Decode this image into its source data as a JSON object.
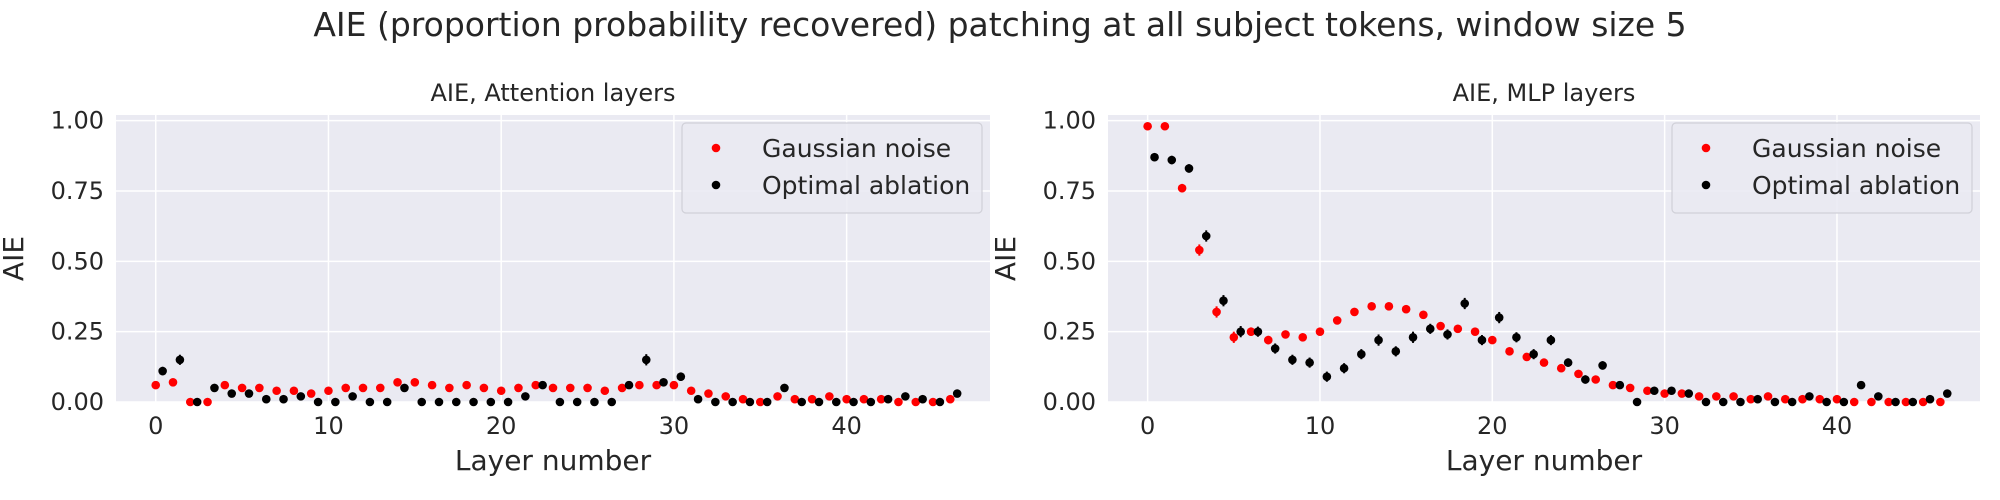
{
  "figure": {
    "title": "AIE (proportion probability recovered) patching at all subject tokens, window size 5"
  },
  "colors": {
    "background": "#eaeaf2",
    "grid": "#ffffff",
    "gaussian": "#ff0000",
    "optimal": "#000000"
  },
  "chart_data": [
    {
      "type": "scatter",
      "title": "AIE, Attention layers",
      "xlabel": "Layer number",
      "ylabel": "AIE",
      "xlim": [
        -2.3,
        48.3
      ],
      "ylim": [
        0,
        1.02
      ],
      "xticks": [
        0,
        10,
        20,
        30,
        40
      ],
      "yticks": [
        0.0,
        0.25,
        0.5,
        0.75,
        1.0
      ],
      "ytick_labels": [
        "0.00",
        "0.25",
        "0.50",
        "0.75",
        "1.00"
      ],
      "grid": true,
      "legend": "top-right",
      "series": [
        {
          "name": "Gaussian noise",
          "color": "#ff0000",
          "x": [
            0,
            1,
            2,
            3,
            4,
            5,
            6,
            7,
            8,
            9,
            10,
            11,
            12,
            13,
            14,
            15,
            16,
            17,
            18,
            19,
            20,
            21,
            22,
            23,
            24,
            25,
            26,
            27,
            28,
            29,
            30,
            31,
            32,
            33,
            34,
            35,
            36,
            37,
            38,
            39,
            40,
            41,
            42,
            43,
            44,
            45,
            46
          ],
          "y": [
            0.06,
            0.07,
            0.0,
            0.0,
            0.06,
            0.05,
            0.05,
            0.04,
            0.04,
            0.03,
            0.04,
            0.05,
            0.05,
            0.05,
            0.07,
            0.07,
            0.06,
            0.05,
            0.06,
            0.05,
            0.04,
            0.05,
            0.06,
            0.05,
            0.05,
            0.05,
            0.04,
            0.05,
            0.06,
            0.06,
            0.06,
            0.04,
            0.03,
            0.02,
            0.01,
            0.0,
            0.02,
            0.01,
            0.01,
            0.02,
            0.01,
            0.01,
            0.01,
            0.0,
            0.0,
            0.0,
            0.01
          ],
          "err": [
            0.008,
            0.01,
            0.005,
            0.005,
            0.008,
            0.008,
            0.008,
            0.008,
            0.008,
            0.008,
            0.008,
            0.008,
            0.008,
            0.008,
            0.008,
            0.008,
            0.008,
            0.008,
            0.008,
            0.008,
            0.008,
            0.008,
            0.008,
            0.008,
            0.008,
            0.008,
            0.008,
            0.008,
            0.008,
            0.008,
            0.008,
            0.008,
            0.008,
            0.008,
            0.008,
            0.008,
            0.008,
            0.008,
            0.008,
            0.008,
            0.008,
            0.008,
            0.008,
            0.008,
            0.008,
            0.008,
            0.008
          ]
        },
        {
          "name": "Optimal ablation",
          "color": "#000000",
          "x": [
            0.4,
            1.4,
            2.4,
            3.4,
            4.4,
            5.4,
            6.4,
            7.4,
            8.4,
            9.4,
            10.4,
            11.4,
            12.4,
            13.4,
            14.4,
            15.4,
            16.4,
            17.4,
            18.4,
            19.4,
            20.4,
            21.4,
            22.4,
            23.4,
            24.4,
            25.4,
            26.4,
            27.4,
            28.4,
            29.4,
            30.4,
            31.4,
            32.4,
            33.4,
            34.4,
            35.4,
            36.4,
            37.4,
            38.4,
            39.4,
            40.4,
            41.4,
            42.4,
            43.4,
            44.4,
            45.4,
            46.4
          ],
          "y": [
            0.11,
            0.15,
            0.0,
            0.05,
            0.03,
            0.03,
            0.01,
            0.01,
            0.02,
            0.0,
            0.0,
            0.02,
            0.0,
            0.0,
            0.05,
            0.0,
            0.0,
            0.0,
            0.0,
            0.0,
            0.0,
            0.02,
            0.06,
            0.0,
            0.0,
            0.0,
            0.0,
            0.06,
            0.15,
            0.07,
            0.09,
            0.01,
            0.0,
            0.0,
            0.0,
            0.0,
            0.05,
            0.0,
            0.0,
            0.0,
            0.0,
            0.0,
            0.01,
            0.02,
            0.01,
            0.0,
            0.03
          ],
          "err": [
            0.015,
            0.018,
            0.005,
            0.01,
            0.01,
            0.01,
            0.008,
            0.008,
            0.008,
            0.005,
            0.005,
            0.008,
            0.005,
            0.005,
            0.01,
            0.005,
            0.005,
            0.005,
            0.005,
            0.005,
            0.005,
            0.008,
            0.01,
            0.005,
            0.005,
            0.005,
            0.005,
            0.012,
            0.02,
            0.012,
            0.015,
            0.008,
            0.005,
            0.005,
            0.005,
            0.005,
            0.01,
            0.005,
            0.005,
            0.005,
            0.005,
            0.005,
            0.008,
            0.008,
            0.008,
            0.005,
            0.01
          ]
        }
      ]
    },
    {
      "type": "scatter",
      "title": "AIE, MLP layers",
      "xlabel": "Layer number",
      "ylabel": "AIE",
      "xlim": [
        -2.3,
        48.3
      ],
      "ylim": [
        0,
        1.02
      ],
      "xticks": [
        0,
        10,
        20,
        30,
        40
      ],
      "yticks": [
        0.0,
        0.25,
        0.5,
        0.75,
        1.0
      ],
      "ytick_labels": [
        "0.00",
        "0.25",
        "0.50",
        "0.75",
        "1.00"
      ],
      "grid": true,
      "legend": "top-right",
      "series": [
        {
          "name": "Gaussian noise",
          "color": "#ff0000",
          "x": [
            0,
            1,
            2,
            3,
            4,
            5,
            6,
            7,
            8,
            9,
            10,
            11,
            12,
            13,
            14,
            15,
            16,
            17,
            18,
            19,
            20,
            21,
            22,
            23,
            24,
            25,
            26,
            27,
            28,
            29,
            30,
            31,
            32,
            33,
            34,
            35,
            36,
            37,
            38,
            39,
            40,
            41,
            42,
            43,
            44,
            45,
            46
          ],
          "y": [
            0.98,
            0.98,
            0.76,
            0.54,
            0.32,
            0.23,
            0.25,
            0.22,
            0.24,
            0.23,
            0.25,
            0.29,
            0.32,
            0.34,
            0.34,
            0.33,
            0.31,
            0.27,
            0.26,
            0.25,
            0.22,
            0.18,
            0.16,
            0.14,
            0.12,
            0.1,
            0.08,
            0.06,
            0.05,
            0.04,
            0.03,
            0.03,
            0.02,
            0.02,
            0.02,
            0.01,
            0.02,
            0.01,
            0.01,
            0.01,
            0.01,
            0.0,
            0.0,
            0.0,
            0.0,
            0.0,
            0.0
          ],
          "err": [
            0.008,
            0.008,
            0.015,
            0.02,
            0.02,
            0.02,
            0.015,
            0.015,
            0.012,
            0.012,
            0.012,
            0.012,
            0.012,
            0.012,
            0.012,
            0.012,
            0.012,
            0.012,
            0.012,
            0.012,
            0.012,
            0.012,
            0.012,
            0.012,
            0.012,
            0.01,
            0.01,
            0.01,
            0.008,
            0.008,
            0.008,
            0.008,
            0.008,
            0.008,
            0.008,
            0.008,
            0.008,
            0.008,
            0.008,
            0.008,
            0.008,
            0.008,
            0.008,
            0.008,
            0.008,
            0.008,
            0.008
          ]
        },
        {
          "name": "Optimal ablation",
          "color": "#000000",
          "x": [
            0.4,
            1.4,
            2.4,
            3.4,
            4.4,
            5.4,
            6.4,
            7.4,
            8.4,
            9.4,
            10.4,
            11.4,
            12.4,
            13.4,
            14.4,
            15.4,
            16.4,
            17.4,
            18.4,
            19.4,
            20.4,
            21.4,
            22.4,
            23.4,
            24.4,
            25.4,
            26.4,
            27.4,
            28.4,
            29.4,
            30.4,
            31.4,
            32.4,
            33.4,
            34.4,
            35.4,
            36.4,
            37.4,
            38.4,
            39.4,
            40.4,
            41.4,
            42.4,
            43.4,
            44.4,
            45.4,
            46.4
          ],
          "y": [
            0.87,
            0.86,
            0.83,
            0.59,
            0.36,
            0.25,
            0.25,
            0.19,
            0.15,
            0.14,
            0.09,
            0.12,
            0.17,
            0.22,
            0.18,
            0.23,
            0.26,
            0.24,
            0.35,
            0.22,
            0.3,
            0.23,
            0.17,
            0.22,
            0.14,
            0.08,
            0.13,
            0.06,
            0.0,
            0.04,
            0.04,
            0.03,
            0.0,
            0.0,
            0.0,
            0.01,
            0.0,
            0.0,
            0.02,
            0.0,
            0.0,
            0.06,
            0.02,
            0.0,
            0.0,
            0.01,
            0.03
          ],
          "err": [
            0.01,
            0.015,
            0.015,
            0.02,
            0.02,
            0.02,
            0.018,
            0.018,
            0.018,
            0.018,
            0.018,
            0.018,
            0.018,
            0.02,
            0.018,
            0.02,
            0.018,
            0.018,
            0.02,
            0.018,
            0.02,
            0.018,
            0.018,
            0.018,
            0.015,
            0.015,
            0.015,
            0.012,
            0.008,
            0.01,
            0.01,
            0.008,
            0.005,
            0.005,
            0.005,
            0.008,
            0.005,
            0.005,
            0.008,
            0.005,
            0.005,
            0.01,
            0.01,
            0.005,
            0.005,
            0.008,
            0.01
          ]
        }
      ]
    }
  ]
}
